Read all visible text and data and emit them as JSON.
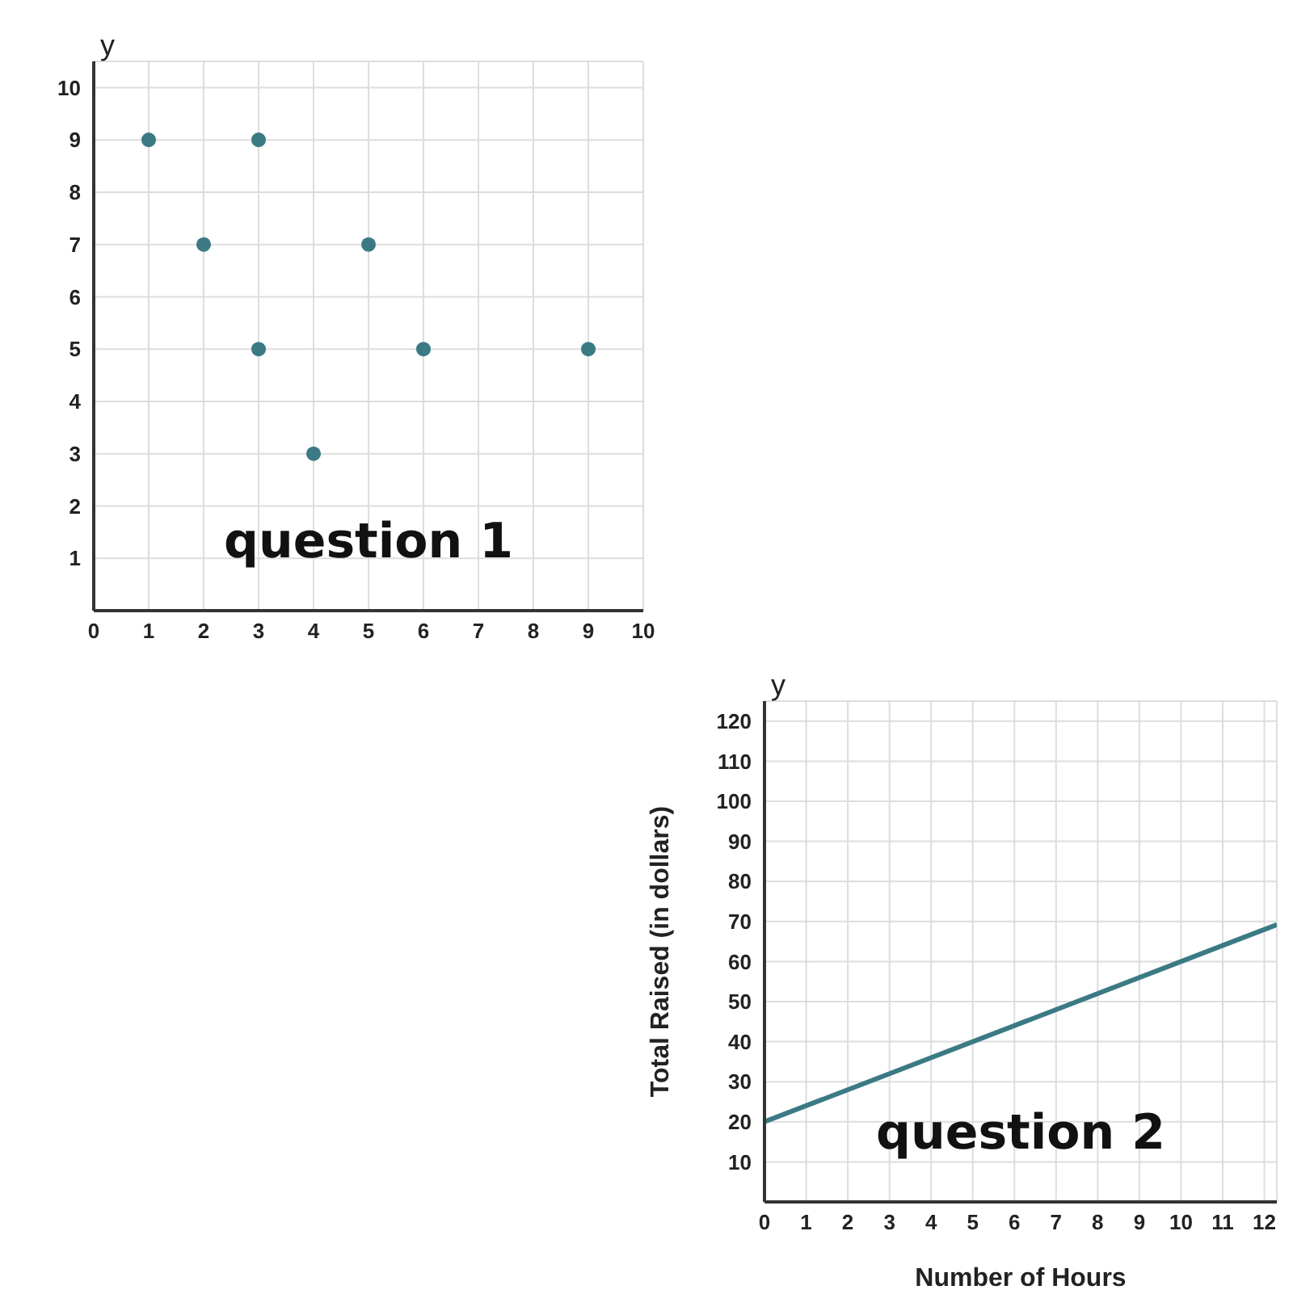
{
  "chart_data": [
    {
      "type": "scatter",
      "annotations": [
        "y",
        "question 1"
      ],
      "grid": true,
      "marker": "circle",
      "series": [
        {
          "color": "#3b7a84",
          "x": [
            1,
            2,
            3,
            3,
            4,
            5,
            6,
            9
          ],
          "values": [
            9,
            7,
            9,
            5,
            3,
            7,
            5,
            5
          ]
        }
      ],
      "xlim": [
        0,
        10
      ],
      "xticks": [
        0,
        1,
        2,
        3,
        4,
        5,
        6,
        7,
        8,
        9,
        10
      ],
      "ylim": [
        0,
        10.5
      ],
      "yticks": [
        1,
        2,
        3,
        4,
        5,
        6,
        7,
        8,
        9,
        10
      ]
    },
    {
      "type": "line",
      "xlabel": "Number of Hours",
      "ylabel": "Total Raised (in dollars)",
      "annotations": [
        "y",
        "question 2"
      ],
      "grid": true,
      "marker": "none",
      "series": [
        {
          "color": "#3b7a84",
          "x": [
            0,
            12.3
          ],
          "values": [
            20,
            69.2
          ]
        }
      ],
      "xlim": [
        0,
        12.3
      ],
      "xticks": [
        0,
        1,
        2,
        3,
        4,
        5,
        6,
        7,
        8,
        9,
        10,
        11,
        12
      ],
      "ylim": [
        0,
        125
      ],
      "yticks": [
        10,
        20,
        30,
        40,
        50,
        60,
        70,
        80,
        90,
        100,
        110,
        120
      ]
    }
  ]
}
